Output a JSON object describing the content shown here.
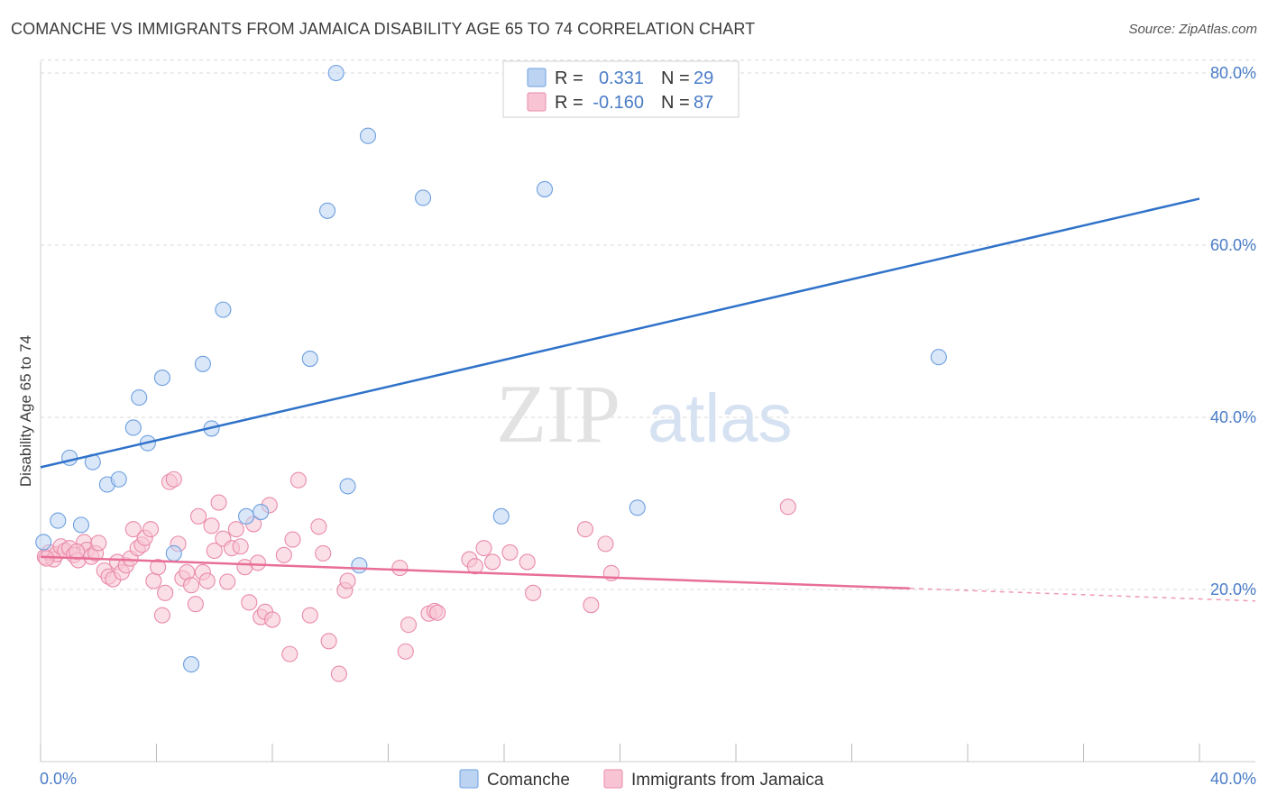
{
  "title": "COMANCHE VS IMMIGRANTS FROM JAMAICA DISABILITY AGE 65 TO 74 CORRELATION CHART",
  "source": "Source: ZipAtlas.com",
  "watermark": {
    "zip": "ZIP",
    "atlas": "atlas"
  },
  "colors": {
    "comanche_fill": "#bcd4f2",
    "comanche_stroke": "#6c9fe0",
    "comanche_line": "#2f72c9",
    "jamaica_fill": "#f8c4d4",
    "jamaica_stroke": "#e98aaa",
    "jamaica_line": "#e86e98",
    "tick_label": "#4a7cc7",
    "grid": "#d9d9d9"
  },
  "legend": {
    "rows": [
      {
        "r_label": "R =",
        "r_value": "0.331",
        "n_label": "N =",
        "n_value": "29"
      },
      {
        "r_label": "R =",
        "r_value": "-0.160",
        "n_label": "N =",
        "n_value": "87"
      }
    ]
  },
  "bottom_legend": [
    "Comanche",
    "Immigrants from Jamaica"
  ],
  "chart_data": {
    "type": "scatter",
    "title": "COMANCHE VS IMMIGRANTS FROM JAMAICA DISABILITY AGE 65 TO 74 CORRELATION CHART",
    "xlabel": "",
    "ylabel": "Disability Age 65 to 74",
    "xlim": [
      0,
      40
    ],
    "ylim": [
      0,
      82
    ],
    "x_tick_labels": [
      {
        "value": 0,
        "label": "0.0%"
      },
      {
        "value": 40,
        "label": "40.0%"
      }
    ],
    "y_tick_labels": [
      {
        "value": 20,
        "label": "20.0%"
      },
      {
        "value": 40,
        "label": "40.0%"
      },
      {
        "value": 60,
        "label": "60.0%"
      },
      {
        "value": 80,
        "label": "80.0%"
      }
    ],
    "grid": true,
    "legend_position": "top-center",
    "series": [
      {
        "name": "Comanche",
        "r": 0.331,
        "n": 29,
        "trend": {
          "x": [
            0,
            40
          ],
          "y": [
            34.2,
            65.4
          ],
          "dashed_from": null
        },
        "points": [
          [
            0.1,
            25.5
          ],
          [
            0.6,
            28
          ],
          [
            1.0,
            35.3
          ],
          [
            1.4,
            27.5
          ],
          [
            1.8,
            34.8
          ],
          [
            2.3,
            32.2
          ],
          [
            2.7,
            32.8
          ],
          [
            3.2,
            38.8
          ],
          [
            3.4,
            42.3
          ],
          [
            3.7,
            37.0
          ],
          [
            4.2,
            44.6
          ],
          [
            4.6,
            24.2
          ],
          [
            5.2,
            11.3
          ],
          [
            5.6,
            46.2
          ],
          [
            5.9,
            38.7
          ],
          [
            6.3,
            52.5
          ],
          [
            7.1,
            28.5
          ],
          [
            7.6,
            29.0
          ],
          [
            9.3,
            46.8
          ],
          [
            9.9,
            64.0
          ],
          [
            10.2,
            80.0
          ],
          [
            10.6,
            32.0
          ],
          [
            11.0,
            22.8
          ],
          [
            11.3,
            72.7
          ],
          [
            13.2,
            65.5
          ],
          [
            15.9,
            28.5
          ],
          [
            17.4,
            66.5
          ],
          [
            20.6,
            29.5
          ],
          [
            31.0,
            47.0
          ]
        ]
      },
      {
        "name": "Immigrants from Jamaica",
        "r": -0.16,
        "n": 87,
        "trend": {
          "x": [
            0,
            40
          ],
          "y": [
            23.8,
            18.9
          ],
          "dashed_from": 30
        },
        "points": [
          [
            0.15,
            23.8
          ],
          [
            0.3,
            24.3
          ],
          [
            0.45,
            23.5
          ],
          [
            0.55,
            24.1
          ],
          [
            0.7,
            25.0
          ],
          [
            0.85,
            24.5
          ],
          [
            1.0,
            24.8
          ],
          [
            1.15,
            24.0
          ],
          [
            1.3,
            23.4
          ],
          [
            1.5,
            25.5
          ],
          [
            1.6,
            24.6
          ],
          [
            1.75,
            23.8
          ],
          [
            1.9,
            24.2
          ],
          [
            2.0,
            25.4
          ],
          [
            2.2,
            22.2
          ],
          [
            2.35,
            21.5
          ],
          [
            2.5,
            21.2
          ],
          [
            2.65,
            23.2
          ],
          [
            2.8,
            22.0
          ],
          [
            2.95,
            22.8
          ],
          [
            3.1,
            23.6
          ],
          [
            3.2,
            27.0
          ],
          [
            3.35,
            24.8
          ],
          [
            3.5,
            25.2
          ],
          [
            3.6,
            26.0
          ],
          [
            3.8,
            27.0
          ],
          [
            3.9,
            21.0
          ],
          [
            4.05,
            22.6
          ],
          [
            4.2,
            17.0
          ],
          [
            4.3,
            19.6
          ],
          [
            4.45,
            32.5
          ],
          [
            4.6,
            32.8
          ],
          [
            4.75,
            25.3
          ],
          [
            4.9,
            21.3
          ],
          [
            5.05,
            22.0
          ],
          [
            5.2,
            20.5
          ],
          [
            5.35,
            18.3
          ],
          [
            5.45,
            28.5
          ],
          [
            5.6,
            22.0
          ],
          [
            5.75,
            21.0
          ],
          [
            5.9,
            27.4
          ],
          [
            6.0,
            24.5
          ],
          [
            6.15,
            30.1
          ],
          [
            6.3,
            25.9
          ],
          [
            6.45,
            20.9
          ],
          [
            6.6,
            24.8
          ],
          [
            6.75,
            27.0
          ],
          [
            6.9,
            25.0
          ],
          [
            7.05,
            22.6
          ],
          [
            7.2,
            18.5
          ],
          [
            7.35,
            27.6
          ],
          [
            7.5,
            23.1
          ],
          [
            7.6,
            16.8
          ],
          [
            7.75,
            17.4
          ],
          [
            7.9,
            29.8
          ],
          [
            8.0,
            16.5
          ],
          [
            8.4,
            24.0
          ],
          [
            8.6,
            12.5
          ],
          [
            8.7,
            25.8
          ],
          [
            8.9,
            32.7
          ],
          [
            9.3,
            17.0
          ],
          [
            9.6,
            27.3
          ],
          [
            9.75,
            24.2
          ],
          [
            9.95,
            14.0
          ],
          [
            10.5,
            19.9
          ],
          [
            10.6,
            21.0
          ],
          [
            10.3,
            10.2
          ],
          [
            12.4,
            22.5
          ],
          [
            12.6,
            12.8
          ],
          [
            12.7,
            15.9
          ],
          [
            13.4,
            17.2
          ],
          [
            13.6,
            17.5
          ],
          [
            13.7,
            17.3
          ],
          [
            14.8,
            23.5
          ],
          [
            15.0,
            22.7
          ],
          [
            15.3,
            24.8
          ],
          [
            15.6,
            23.2
          ],
          [
            16.2,
            24.3
          ],
          [
            16.8,
            23.2
          ],
          [
            17.0,
            19.6
          ],
          [
            18.8,
            27.0
          ],
          [
            19.0,
            18.2
          ],
          [
            19.5,
            25.3
          ],
          [
            19.7,
            21.9
          ],
          [
            25.8,
            29.6
          ],
          [
            0.2,
            23.6
          ],
          [
            1.25,
            24.4
          ]
        ]
      }
    ]
  }
}
